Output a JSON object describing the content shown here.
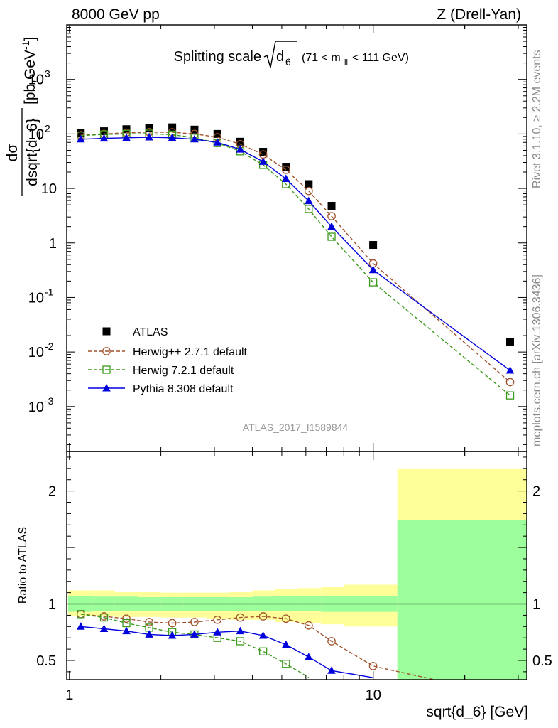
{
  "header": {
    "left": "8000 GeV pp",
    "right": "Z (Drell-Yan)"
  },
  "plot_title": {
    "main": "Splitting scale",
    "var": "d",
    "sub": "6",
    "range": "(71 < m",
    "range_sub": "ll",
    "range_end": " < 111 GeV)"
  },
  "watermark": "ATLAS_2017_I1589844",
  "side_labels": {
    "rivet": "Rivet 3.1.10, ≥ 2.2M events",
    "mcplots": "mcplots.cern.ch [arXiv:1306.3436]"
  },
  "axes": {
    "ylabel_num": "dσ",
    "ylabel_den": "dsqrt{d_6}",
    "ylabel_units": "[pb,GeV",
    "ylabel_units_exp": "-1",
    "ylabel_units_end": "]",
    "ratio_ylabel": "Ratio to ATLAS",
    "xlabel": "sqrt{d_6} [GeV]"
  },
  "colors": {
    "atlas": "#000000",
    "herwigpp": "#a0522d",
    "herwig7": "#3a9a1a",
    "pythia": "#0000dd",
    "band_inner": "#9cff9c",
    "band_outer": "#ffff99"
  },
  "chart_data": [
    {
      "type": "scatter",
      "title": "Splitting scale sqrt(d_6) (71 < m_ll < 111 GeV)",
      "xscale": "log",
      "yscale": "log",
      "xlim": [
        0.98,
        32
      ],
      "ylim": [
        0.00015,
        10000
      ],
      "x_ticks": [
        {
          "v": 1,
          "label": "1"
        },
        {
          "v": 10,
          "label": "10"
        }
      ],
      "y_ticks": [
        {
          "v": 0.001,
          "base": "10",
          "exp": "-3"
        },
        {
          "v": 0.01,
          "base": "10",
          "exp": "-2"
        },
        {
          "v": 0.1,
          "base": "10",
          "exp": "-1"
        },
        {
          "v": 1,
          "base": "1",
          "exp": ""
        },
        {
          "v": 10,
          "base": "10",
          "exp": ""
        },
        {
          "v": 100,
          "base": "10",
          "exp": "2"
        },
        {
          "v": 1000,
          "base": "10",
          "exp": "3"
        }
      ],
      "legend_position": "bottom-left",
      "series": [
        {
          "name": "ATLAS",
          "style": "data",
          "marker": "square-filled",
          "x": [
            1.09,
            1.3,
            1.54,
            1.83,
            2.18,
            2.58,
            3.07,
            3.65,
            4.34,
            5.16,
            6.13,
            7.29,
            9.99,
            28.2
          ],
          "y": [
            105,
            112,
            122,
            130,
            132,
            120,
            100,
            72,
            47,
            25,
            12,
            4.8,
            0.92,
            0.0155
          ]
        },
        {
          "name": "Herwig++ 2.7.1 default",
          "style": "dashed",
          "marker": "circle-open",
          "x": [
            1.09,
            1.3,
            1.54,
            1.83,
            2.18,
            2.58,
            3.07,
            3.65,
            4.34,
            5.16,
            6.13,
            7.29,
            9.99,
            28.2
          ],
          "y": [
            95,
            100,
            105,
            108,
            107,
            100,
            87,
            65,
            42,
            22,
            9,
            3.1,
            0.42,
            0.0028
          ]
        },
        {
          "name": "Herwig 7.2.1 default",
          "style": "dashed",
          "marker": "square-open",
          "x": [
            1.09,
            1.3,
            1.54,
            1.83,
            2.18,
            2.58,
            3.07,
            3.65,
            4.34,
            5.16,
            6.13,
            7.29,
            9.99,
            28.2
          ],
          "y": [
            93,
            98,
            100,
            101,
            97,
            85,
            68,
            48,
            27,
            12,
            4.2,
            1.3,
            0.19,
            0.0016
          ]
        },
        {
          "name": "Pythia 8.308 default",
          "style": "solid",
          "marker": "triangle-filled",
          "x": [
            1.09,
            1.3,
            1.54,
            1.83,
            2.18,
            2.58,
            3.07,
            3.65,
            4.34,
            5.16,
            6.13,
            7.29,
            9.99,
            28.2
          ],
          "y": [
            80,
            83,
            85,
            87,
            85,
            80,
            70,
            52,
            31,
            15,
            5.9,
            2.0,
            0.32,
            0.0046
          ]
        }
      ]
    },
    {
      "type": "line",
      "title": "Ratio to ATLAS",
      "xscale": "log",
      "xlim": [
        0.98,
        32
      ],
      "ylim": [
        0.33,
        2.35
      ],
      "y_ticks": [
        {
          "v": 0.5,
          "label": "0.5"
        },
        {
          "v": 1,
          "label": "1"
        },
        {
          "v": 2,
          "label": "2"
        }
      ],
      "bins": [
        0.99,
        1.19,
        1.41,
        1.68,
        2.0,
        2.38,
        2.83,
        3.36,
        4.0,
        4.76,
        5.66,
        6.73,
        8.0,
        12.0,
        32.0
      ],
      "band_inner": [
        [
          0.93,
          1.07
        ],
        [
          0.935,
          1.065
        ],
        [
          0.935,
          1.065
        ],
        [
          0.94,
          1.06
        ],
        [
          0.94,
          1.06
        ],
        [
          0.94,
          1.06
        ],
        [
          0.94,
          1.06
        ],
        [
          0.94,
          1.06
        ],
        [
          0.94,
          1.065
        ],
        [
          0.935,
          1.07
        ],
        [
          0.935,
          1.07
        ],
        [
          0.93,
          1.07
        ],
        [
          0.93,
          1.07
        ],
        [
          0.3,
          1.74
        ]
      ],
      "band_outer": [
        [
          0.89,
          1.12
        ],
        [
          0.89,
          1.12
        ],
        [
          0.885,
          1.11
        ],
        [
          0.885,
          1.11
        ],
        [
          0.88,
          1.1
        ],
        [
          0.88,
          1.1
        ],
        [
          0.87,
          1.1
        ],
        [
          0.86,
          1.11
        ],
        [
          0.86,
          1.12
        ],
        [
          0.84,
          1.13
        ],
        [
          0.83,
          1.14
        ],
        [
          0.82,
          1.15
        ],
        [
          0.8,
          1.17
        ],
        [
          0.3,
          2.2
        ]
      ],
      "series": [
        {
          "name": "Herwig++ 2.7.1 default",
          "x": [
            1.09,
            1.3,
            1.54,
            1.83,
            2.18,
            2.58,
            3.07,
            3.65,
            4.34,
            5.16,
            6.13,
            7.29,
            9.99
          ],
          "y": [
            0.91,
            0.89,
            0.87,
            0.84,
            0.83,
            0.84,
            0.86,
            0.88,
            0.89,
            0.87,
            0.81,
            0.67,
            0.45
          ]
        },
        {
          "name": "Herwig 7.2.1 default",
          "x": [
            1.09,
            1.3,
            1.54,
            1.83,
            2.18,
            2.58,
            3.07,
            3.65,
            4.34,
            5.16
          ],
          "y": [
            0.91,
            0.88,
            0.83,
            0.79,
            0.75,
            0.73,
            0.7,
            0.67,
            0.58,
            0.47
          ]
        },
        {
          "name": "Pythia 8.308 default",
          "x": [
            1.09,
            1.3,
            1.54,
            1.83,
            2.18,
            2.58,
            3.07,
            3.65,
            4.34,
            5.16,
            6.13,
            7.29
          ],
          "y": [
            0.8,
            0.78,
            0.76,
            0.73,
            0.72,
            0.73,
            0.75,
            0.76,
            0.72,
            0.64,
            0.53,
            0.41
          ]
        }
      ]
    }
  ]
}
